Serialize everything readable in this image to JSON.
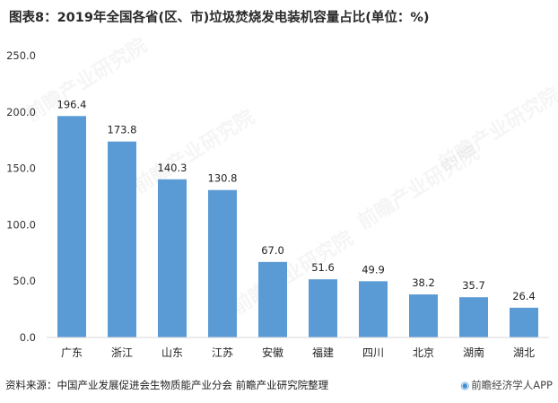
{
  "title": "图表8：2019年全国各省(区、市)垃圾焚烧发电装机容量占比(单位：%)",
  "footer": {
    "source": "资料来源：中国产业发展促进会生物质能产业分会 前瞻产业研究院整理",
    "brand": "前瞻经济学人APP",
    "brand_icon": "logo-icon"
  },
  "watermark": "前瞻产业研究院",
  "colors": {
    "bar": "#5b9bd5",
    "axis": "#d9d9d9",
    "text": "#333333"
  },
  "chart_data": {
    "type": "bar",
    "categories": [
      "广东",
      "浙江",
      "山东",
      "江苏",
      "安徽",
      "福建",
      "四川",
      "北京",
      "湖南",
      "湖北"
    ],
    "values": [
      196.4,
      173.8,
      140.3,
      130.8,
      67.0,
      51.6,
      49.9,
      38.2,
      35.7,
      26.4
    ],
    "value_labels": [
      "196.4",
      "173.8",
      "140.3",
      "130.8",
      "67.0",
      "51.6",
      "49.9",
      "38.2",
      "35.7",
      "26.4"
    ],
    "y_ticks": [
      "0.0",
      "50.0",
      "100.0",
      "150.0",
      "200.0",
      "250.0"
    ],
    "ylim": [
      0,
      250
    ],
    "grid": false,
    "legend": "none"
  }
}
